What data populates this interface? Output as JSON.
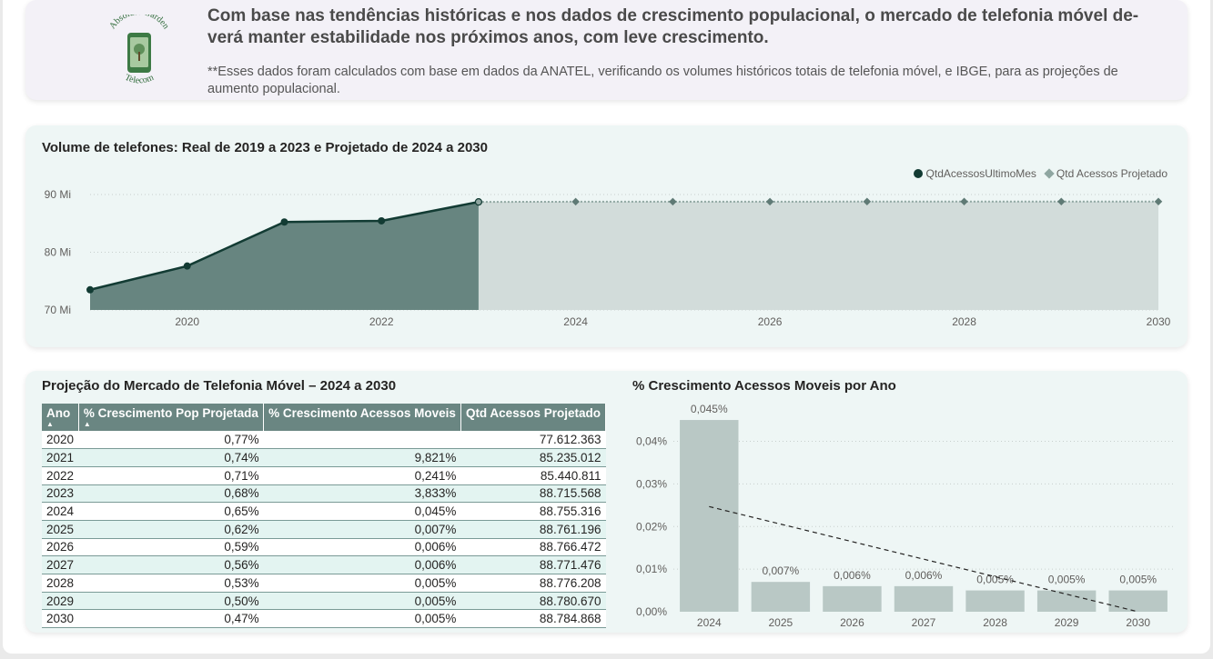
{
  "header": {
    "logo_text_top": "Absolute Garden",
    "logo_text_bottom": "Telecom",
    "headline": "Com base nas tendências históricas e nos dados de crescimento populacional, o mercado de telefonia móvel de-verá manter estabilidade nos próximos anos, com leve crescimento.",
    "footnote": "**Esses dados foram calculados com base em dados da ANATEL, verificando os volumes históricos totais de telefonia móvel,  e IBGE, para as projeções de aumento populacional."
  },
  "chart_data": [
    {
      "type": "area",
      "title": "Volume de telefones: Real de 2019 a 2023 e Projetado de 2024 a 2030",
      "legend": [
        "QtdAcessosUltimoMes",
        "Qtd Acessos Projetado"
      ],
      "legend_position": "top-right",
      "x_ticks": [
        "2020",
        "2022",
        "2024",
        "2026",
        "2028",
        "2030"
      ],
      "y_ticks": [
        "70 Mi",
        "80 Mi",
        "90 Mi"
      ],
      "ylim": [
        70000000,
        90000000
      ],
      "xlim": [
        2019,
        2030
      ],
      "grid": true,
      "colors": {
        "real": "#123b33",
        "real_fill": "#678580",
        "projected": "#8fa6a1",
        "projected_fill": "#d2dcda"
      },
      "series": [
        {
          "name": "QtdAcessosUltimoMes",
          "x": [
            2019,
            2020,
            2021,
            2022,
            2023
          ],
          "y": [
            73500000,
            77612363,
            85235012,
            85440811,
            88715568
          ]
        },
        {
          "name": "Qtd Acessos Projetado",
          "x": [
            2023,
            2024,
            2025,
            2026,
            2027,
            2028,
            2029,
            2030
          ],
          "y": [
            88715568,
            88755316,
            88761196,
            88766472,
            88771476,
            88776208,
            88780670,
            88784868
          ]
        }
      ]
    },
    {
      "type": "table",
      "title": "Projeção do Mercado de Telefonia Móvel – 2024 a 2030",
      "columns": [
        "Ano",
        "% Crescimento Pop Projetada",
        "% Crescimento Acessos Moveis",
        "Qtd Acessos Projetado"
      ],
      "rows": [
        [
          "2020",
          "0,77%",
          "",
          "77.612.363"
        ],
        [
          "2021",
          "0,74%",
          "9,821%",
          "85.235.012"
        ],
        [
          "2022",
          "0,71%",
          "0,241%",
          "85.440.811"
        ],
        [
          "2023",
          "0,68%",
          "3,833%",
          "88.715.568"
        ],
        [
          "2024",
          "0,65%",
          "0,045%",
          "88.755.316"
        ],
        [
          "2025",
          "0,62%",
          "0,007%",
          "88.761.196"
        ],
        [
          "2026",
          "0,59%",
          "0,006%",
          "88.766.472"
        ],
        [
          "2027",
          "0,56%",
          "0,006%",
          "88.771.476"
        ],
        [
          "2028",
          "0,53%",
          "0,005%",
          "88.776.208"
        ],
        [
          "2029",
          "0,50%",
          "0,005%",
          "88.780.670"
        ],
        [
          "2030",
          "0,47%",
          "0,005%",
          "88.784.868"
        ]
      ]
    },
    {
      "type": "bar",
      "title": "% Crescimento Acessos Moveis por Ano",
      "categories": [
        "2024",
        "2025",
        "2026",
        "2027",
        "2028",
        "2029",
        "2030"
      ],
      "values": [
        0.045,
        0.007,
        0.006,
        0.006,
        0.005,
        0.005,
        0.005
      ],
      "data_labels": [
        "0,045%",
        "0,007%",
        "0,006%",
        "0,006%",
        "0,005%",
        "0,005%",
        "0,005%"
      ],
      "y_ticks": [
        "0,00%",
        "0,01%",
        "0,02%",
        "0,03%",
        "0,04%"
      ],
      "ylim": [
        0,
        0.048
      ],
      "trendline": true,
      "grid": true,
      "colors": {
        "bar": "#b9c8c5",
        "trend": "#252423"
      }
    }
  ]
}
